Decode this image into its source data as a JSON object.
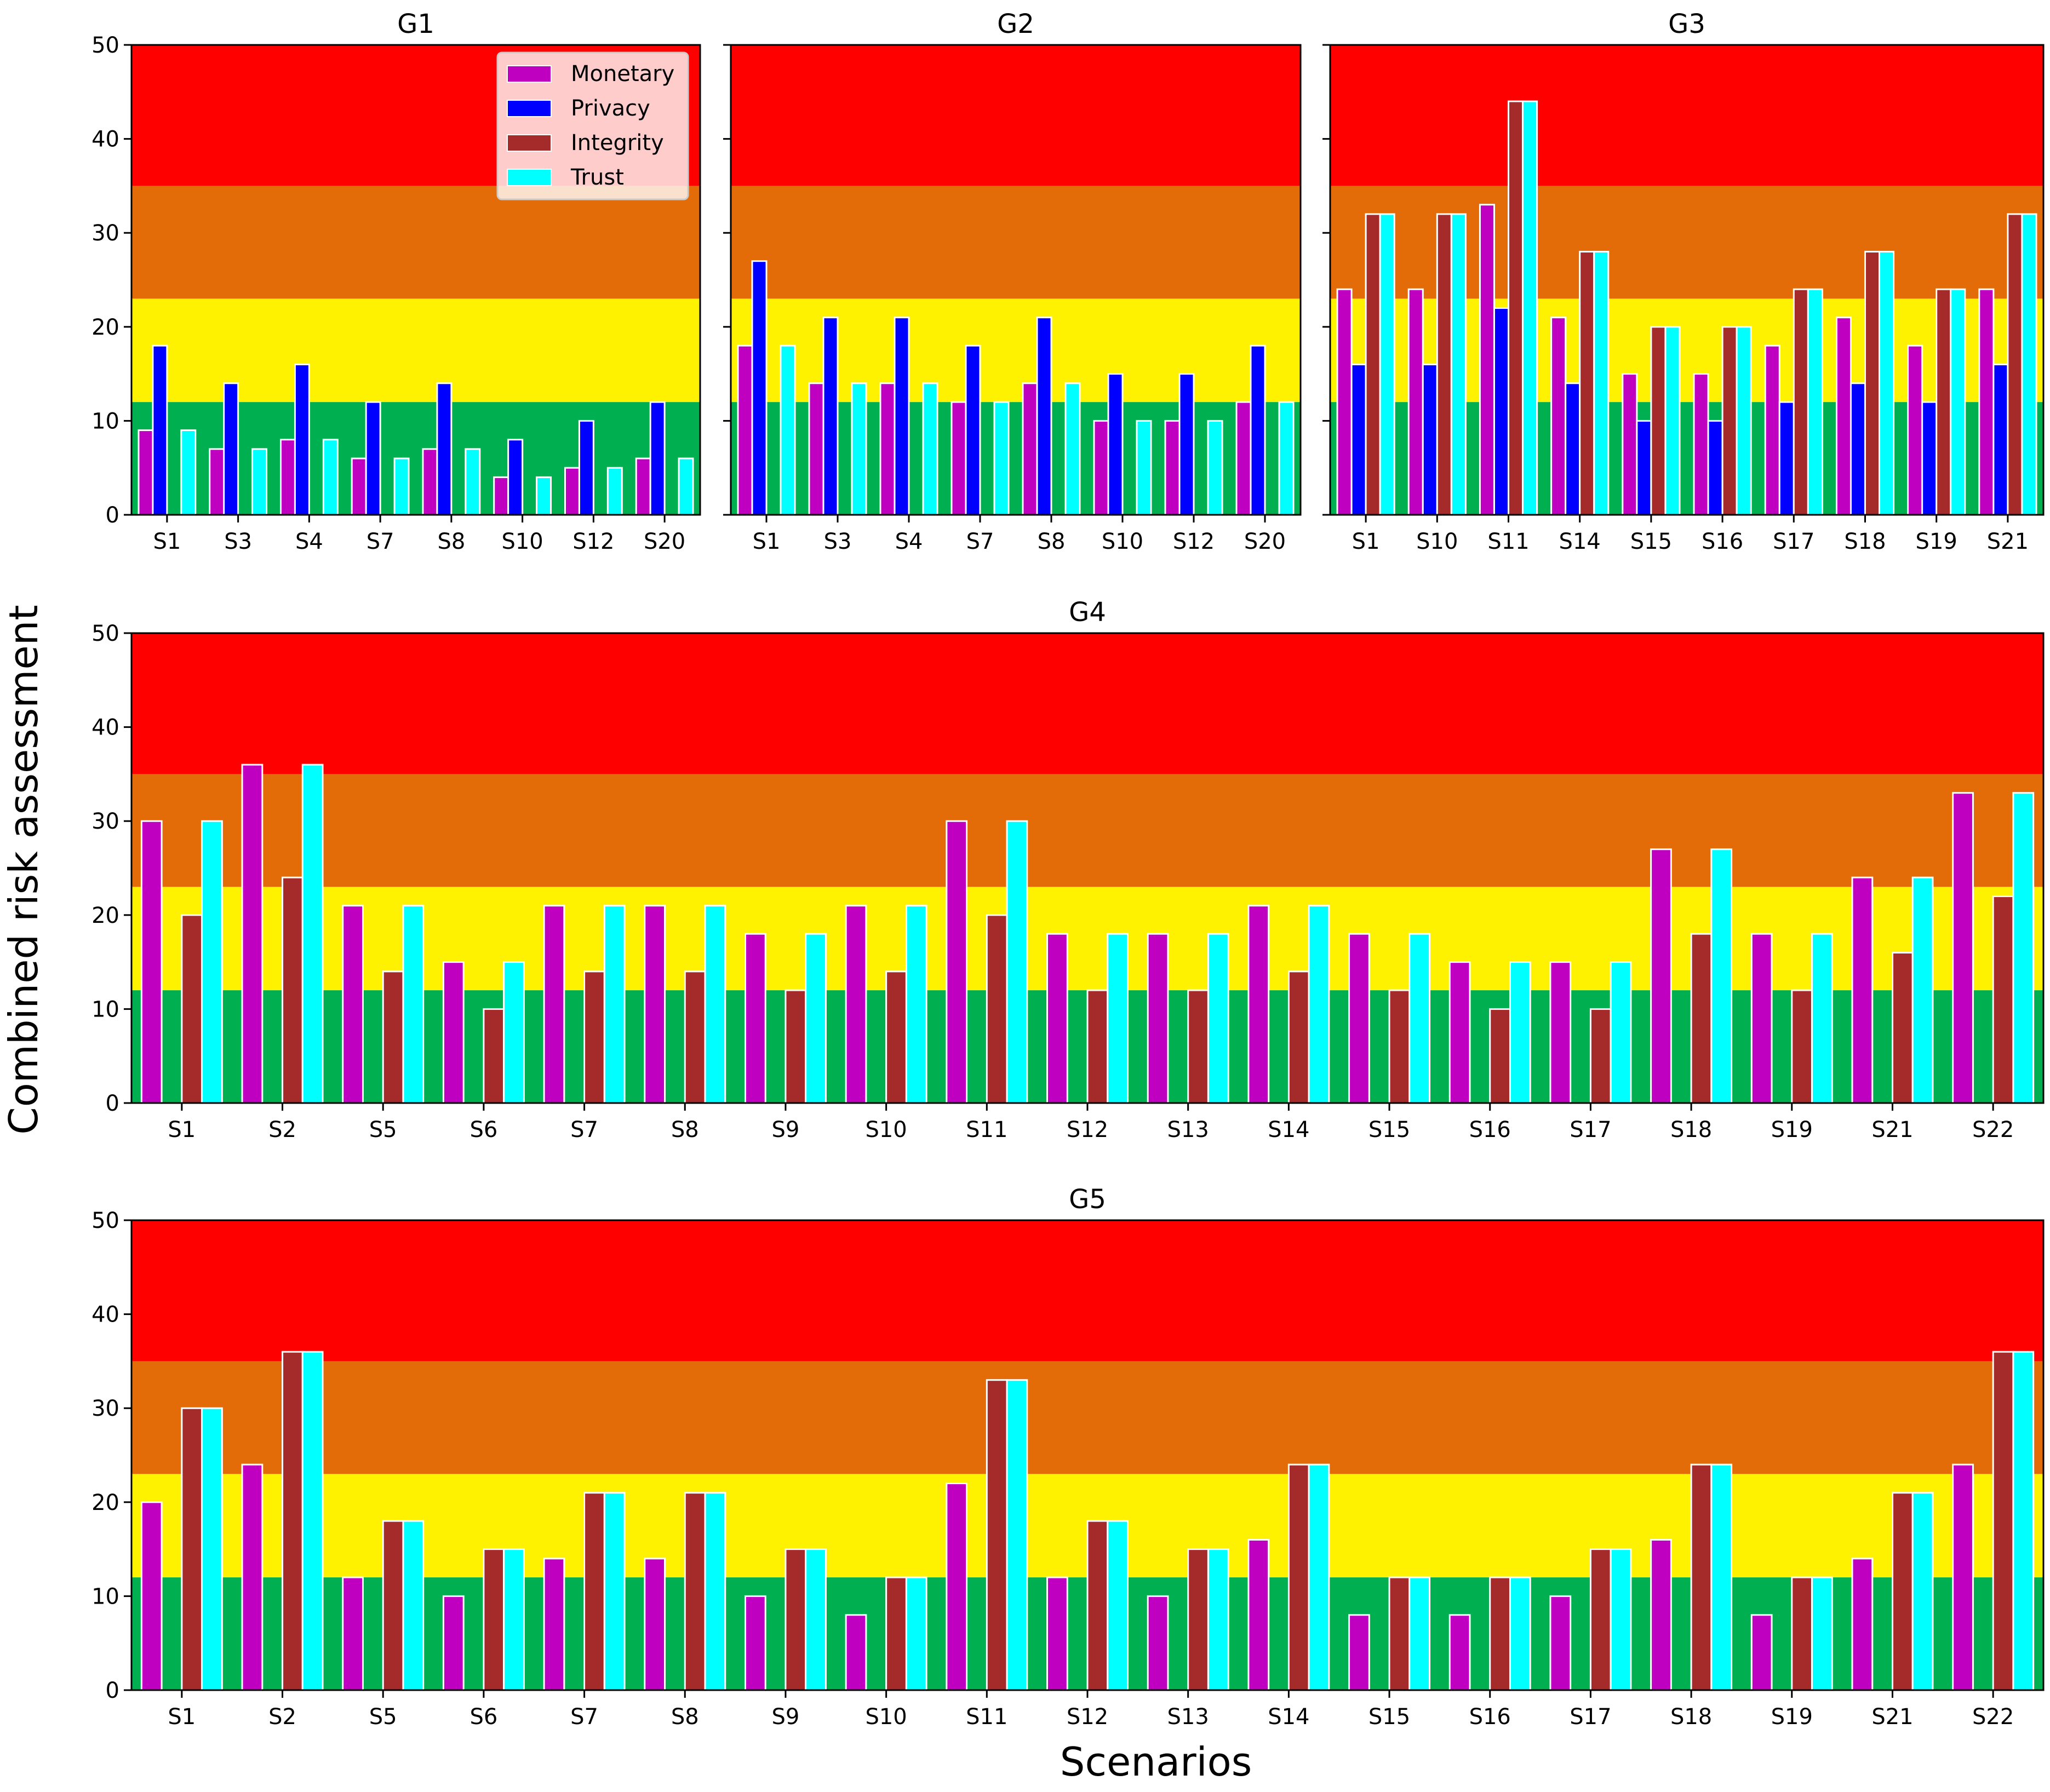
{
  "figure": {
    "ylabel": "Combined risk assessment",
    "xlabel": "Scenarios"
  },
  "colors": {
    "bands": [
      "#00b050",
      "#fff200",
      "#e36c09",
      "#ff0000"
    ],
    "Monetary": "#c000c0",
    "Privacy": "#0000ff",
    "Integrity": "#a52a2a",
    "Trust": "#00ffff",
    "bar_edge": "#ffffff"
  },
  "risk_band_limits": [
    0,
    12,
    23,
    35,
    50
  ],
  "legend": {
    "placement": "top-right of G1",
    "entries": [
      "Monetary",
      "Privacy",
      "Integrity",
      "Trust"
    ]
  },
  "chart_data": [
    {
      "type": "bar",
      "title": "G1",
      "ylim": [
        0,
        50
      ],
      "yticks": [
        0,
        10,
        20,
        30,
        40,
        50
      ],
      "categories": [
        "S1",
        "S3",
        "S4",
        "S7",
        "S8",
        "S10",
        "S12",
        "S20"
      ],
      "series": [
        {
          "name": "Monetary",
          "values": [
            9,
            7,
            8,
            6,
            7,
            4,
            5,
            6
          ]
        },
        {
          "name": "Privacy",
          "values": [
            18,
            14,
            16,
            12,
            14,
            8,
            10,
            12
          ]
        },
        {
          "name": "Trust",
          "values": [
            9,
            7,
            8,
            6,
            7,
            4,
            5,
            6
          ]
        }
      ]
    },
    {
      "type": "bar",
      "title": "G2",
      "ylim": [
        0,
        50
      ],
      "yticks": [
        0,
        10,
        20,
        30,
        40,
        50
      ],
      "categories": [
        "S1",
        "S3",
        "S4",
        "S7",
        "S8",
        "S10",
        "S12",
        "S20"
      ],
      "series": [
        {
          "name": "Monetary",
          "values": [
            18,
            14,
            14,
            12,
            14,
            10,
            10,
            12
          ]
        },
        {
          "name": "Privacy",
          "values": [
            27,
            21,
            21,
            18,
            21,
            15,
            15,
            18
          ]
        },
        {
          "name": "Trust",
          "values": [
            18,
            14,
            14,
            12,
            14,
            10,
            10,
            12
          ]
        }
      ]
    },
    {
      "type": "bar",
      "title": "G3",
      "ylim": [
        0,
        50
      ],
      "yticks": [
        0,
        10,
        20,
        30,
        40,
        50
      ],
      "categories": [
        "S1",
        "S10",
        "S11",
        "S14",
        "S15",
        "S16",
        "S17",
        "S18",
        "S19",
        "S21"
      ],
      "series": [
        {
          "name": "Monetary",
          "values": [
            24,
            24,
            33,
            21,
            15,
            15,
            18,
            21,
            18,
            24
          ]
        },
        {
          "name": "Privacy",
          "values": [
            16,
            16,
            22,
            14,
            10,
            10,
            12,
            14,
            12,
            16
          ]
        },
        {
          "name": "Integrity",
          "values": [
            32,
            32,
            44,
            28,
            20,
            20,
            24,
            28,
            24,
            32
          ]
        },
        {
          "name": "Trust",
          "values": [
            32,
            32,
            44,
            28,
            20,
            20,
            24,
            28,
            24,
            32
          ]
        }
      ]
    },
    {
      "type": "bar",
      "title": "G4",
      "ylim": [
        0,
        50
      ],
      "yticks": [
        0,
        10,
        20,
        30,
        40,
        50
      ],
      "categories": [
        "S1",
        "S2",
        "S5",
        "S6",
        "S7",
        "S8",
        "S9",
        "S10",
        "S11",
        "S12",
        "S13",
        "S14",
        "S15",
        "S16",
        "S17",
        "S18",
        "S19",
        "S21",
        "S22"
      ],
      "series": [
        {
          "name": "Monetary",
          "values": [
            30,
            36,
            21,
            15,
            21,
            21,
            18,
            21,
            30,
            18,
            18,
            21,
            18,
            15,
            15,
            27,
            18,
            24,
            33
          ]
        },
        {
          "name": "Integrity",
          "values": [
            20,
            24,
            14,
            10,
            14,
            14,
            12,
            14,
            20,
            12,
            12,
            14,
            12,
            10,
            10,
            18,
            12,
            16,
            22
          ]
        },
        {
          "name": "Trust",
          "values": [
            30,
            36,
            21,
            15,
            21,
            21,
            18,
            21,
            30,
            18,
            18,
            21,
            18,
            15,
            15,
            27,
            18,
            24,
            33
          ]
        }
      ]
    },
    {
      "type": "bar",
      "title": "G5",
      "ylim": [
        0,
        50
      ],
      "yticks": [
        0,
        10,
        20,
        30,
        40,
        50
      ],
      "categories": [
        "S1",
        "S2",
        "S5",
        "S6",
        "S7",
        "S8",
        "S9",
        "S10",
        "S11",
        "S12",
        "S13",
        "S14",
        "S15",
        "S16",
        "S17",
        "S18",
        "S19",
        "S21",
        "S22"
      ],
      "series": [
        {
          "name": "Monetary",
          "values": [
            20,
            24,
            12,
            10,
            14,
            14,
            10,
            8,
            22,
            12,
            10,
            16,
            8,
            8,
            10,
            16,
            8,
            14,
            24
          ]
        },
        {
          "name": "Integrity",
          "values": [
            30,
            36,
            18,
            15,
            21,
            21,
            15,
            12,
            33,
            18,
            15,
            24,
            12,
            12,
            15,
            24,
            12,
            21,
            36
          ]
        },
        {
          "name": "Trust",
          "values": [
            30,
            36,
            18,
            15,
            21,
            21,
            15,
            12,
            33,
            18,
            15,
            24,
            12,
            12,
            15,
            24,
            12,
            21,
            36
          ]
        }
      ]
    }
  ]
}
